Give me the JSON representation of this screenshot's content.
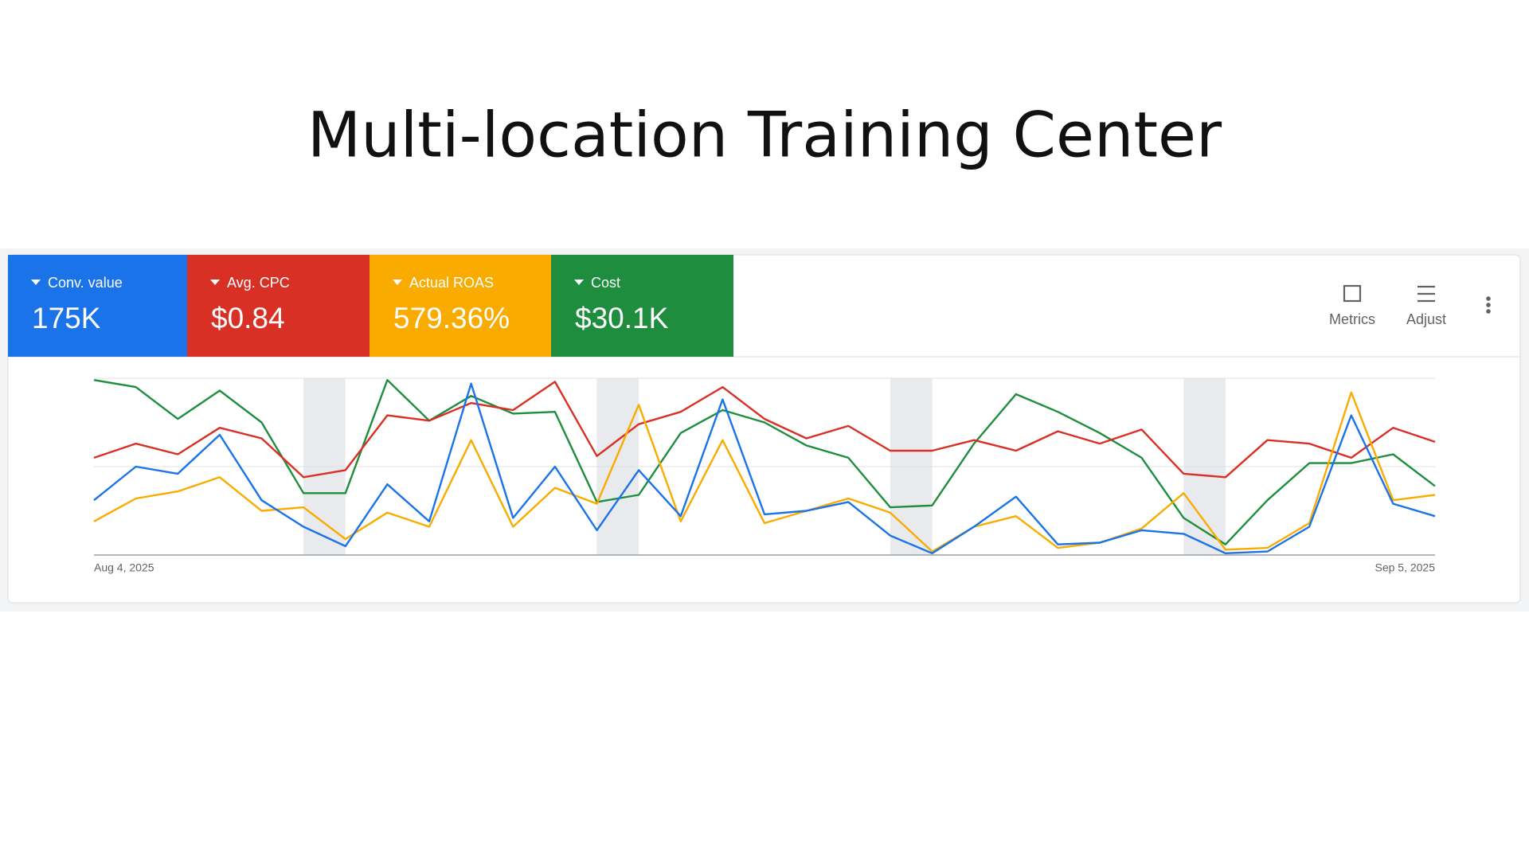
{
  "page_title": "Multi-location Training Center",
  "toolbar": {
    "metrics": "Metrics",
    "adjust": "Adjust"
  },
  "chart_data": {
    "type": "line",
    "categories": [
      "Aug 4, 2025",
      null,
      null,
      null,
      null,
      null,
      null,
      null,
      null,
      null,
      null,
      null,
      null,
      null,
      null,
      null,
      null,
      null,
      null,
      null,
      null,
      null,
      null,
      null,
      null,
      null,
      null,
      null,
      null,
      null,
      null,
      null,
      "Sep 5, 2025"
    ],
    "ylim": [
      0,
      100
    ],
    "gridlines": [
      0,
      50,
      100
    ],
    "shaded_ranges": [
      [
        5,
        6
      ],
      [
        12,
        13
      ],
      [
        19,
        20
      ],
      [
        26,
        27
      ]
    ],
    "series": [
      {
        "name": "Conv. value",
        "summary": "175K",
        "color": "#1a73e8",
        "values": [
          31,
          50,
          46,
          68,
          31,
          16,
          5,
          40,
          19,
          97,
          21,
          50,
          14,
          48,
          22,
          88,
          23,
          25,
          30,
          11,
          1,
          16,
          33,
          6,
          7,
          14,
          12,
          1,
          2,
          16,
          79,
          29,
          22
        ]
      },
      {
        "name": "Avg. CPC",
        "summary": "$0.84",
        "color": "#d93025",
        "values": [
          55,
          63,
          57,
          72,
          66,
          44,
          48,
          79,
          76,
          86,
          82,
          98,
          56,
          74,
          81,
          95,
          77,
          66,
          73,
          59,
          59,
          65,
          59,
          70,
          63,
          71,
          46,
          44,
          65,
          63,
          55,
          72,
          64
        ]
      },
      {
        "name": "Actual ROAS",
        "summary": "579.36%",
        "color": "#f9ab00",
        "values": [
          19,
          32,
          36,
          44,
          25,
          27,
          9,
          24,
          16,
          65,
          16,
          38,
          29,
          85,
          19,
          65,
          18,
          25,
          32,
          24,
          2,
          16,
          22,
          4,
          7,
          15,
          35,
          3,
          4,
          18,
          92,
          31,
          34
        ]
      },
      {
        "name": "Cost",
        "summary": "$30.1K",
        "color": "#1e8e3e",
        "values": [
          99,
          95,
          77,
          93,
          75,
          35,
          35,
          99,
          76,
          90,
          80,
          81,
          30,
          34,
          69,
          82,
          75,
          62,
          55,
          27,
          28,
          63,
          91,
          81,
          69,
          55,
          21,
          6,
          31,
          52,
          52,
          57,
          39
        ]
      }
    ]
  }
}
